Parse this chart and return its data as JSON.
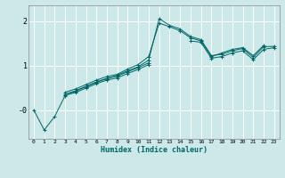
{
  "title": "",
  "xlabel": "Humidex (Indice chaleur)",
  "bg_color": "#cce8e8",
  "grid_color": "#ffffff",
  "line_color": "#006666",
  "xlim": [
    -0.5,
    23.5
  ],
  "ylim": [
    -0.65,
    2.35
  ],
  "yticks": [
    0,
    1,
    2
  ],
  "ytick_labels": [
    "-0",
    "1",
    "2"
  ],
  "xticks": [
    0,
    1,
    2,
    3,
    4,
    5,
    6,
    7,
    8,
    9,
    10,
    11,
    12,
    13,
    14,
    15,
    16,
    17,
    18,
    19,
    20,
    21,
    22,
    23
  ],
  "series": [
    [
      0,
      -0.45,
      -0.15,
      0.32,
      0.42,
      0.52,
      0.62,
      0.7,
      0.78,
      0.88,
      0.97,
      1.12,
      2.05,
      1.9,
      1.82,
      1.65,
      1.58,
      1.22,
      1.25,
      1.33,
      1.38,
      1.18,
      1.42,
      1.43
    ],
    [
      null,
      null,
      null,
      0.4,
      0.47,
      0.57,
      0.67,
      0.75,
      0.8,
      0.92,
      1.02,
      1.2,
      1.95,
      1.87,
      1.78,
      1.62,
      1.55,
      1.2,
      1.28,
      1.36,
      1.4,
      1.22,
      1.45,
      null
    ],
    [
      null,
      null,
      null,
      0.36,
      0.43,
      0.53,
      0.63,
      0.71,
      0.76,
      0.86,
      0.95,
      1.06,
      null,
      null,
      null,
      null,
      null,
      null,
      null,
      null,
      null,
      null,
      null,
      null
    ],
    [
      null,
      null,
      null,
      0.33,
      0.39,
      0.49,
      0.59,
      0.67,
      0.72,
      0.82,
      0.91,
      1.02,
      null,
      null,
      null,
      null,
      null,
      null,
      null,
      null,
      null,
      null,
      null,
      null
    ],
    [
      null,
      null,
      null,
      null,
      null,
      null,
      null,
      null,
      null,
      null,
      null,
      null,
      null,
      null,
      null,
      1.55,
      1.52,
      1.16,
      1.2,
      1.28,
      1.33,
      1.13,
      1.36,
      1.4
    ]
  ]
}
